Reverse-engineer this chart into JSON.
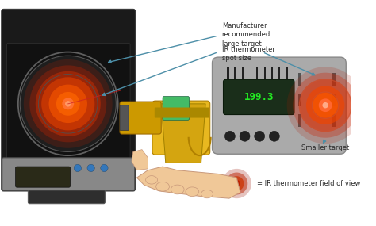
{
  "bg_color": "#ffffff",
  "fig_w": 4.74,
  "fig_h": 2.85,
  "dpi": 100,
  "annotation_label1": "Manufacturer\nrecommended\nlarge target",
  "annotation_label2": "IR thermometer\nspot size",
  "annotation_label3": "Smaller target",
  "annotation_label4": "= IR thermometer field of view",
  "arrow_color": "#4d8fa8",
  "arrow_lw": 1.0,
  "font_size_label": 6.0,
  "font_color": "#2a2a2a"
}
